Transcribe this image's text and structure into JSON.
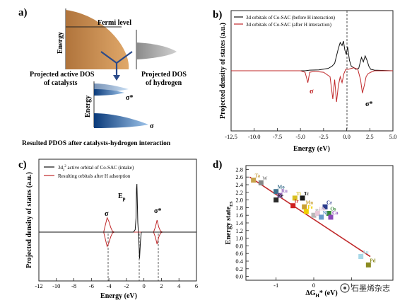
{
  "panels": {
    "a": {
      "label": "a)",
      "fermi": "Fermi level",
      "energy": "Energy",
      "cat_dos": "Projected active DOS of catalysts",
      "cat_dos_l1": "Projected active DOS",
      "cat_dos_l2": "of catalysts",
      "h_dos_l1": "Projected DOS",
      "h_dos_l2": "of hydrogen",
      "sigma_star": "σ*",
      "sigma": "σ",
      "result": "Resulted PDOS after catalysts-hydrogen interaction"
    },
    "b": {
      "label": "b)",
      "legend": [
        "3d orbitals of Co-SAC (before H interaction)",
        "3d orbitals of Co-SAC (after H interaction)"
      ],
      "sigma": "σ",
      "sigma_star": "σ*",
      "xlabel": "Energy (eV)",
      "ylabel": "Projected density of states (a.u.)",
      "xticks": [
        "-12.5",
        "-10.0",
        "-7.5",
        "-5.0",
        "-2.5",
        "0.0",
        "2.5",
        "5.0"
      ]
    },
    "c": {
      "label": "c)",
      "legend1_pre": "3d",
      "legend1_sub": "z",
      "legend1_sup": "2",
      "legend1_post": " active orbital of Co-SAC (intake)",
      "legend2": "Resulting orbitals after H adsorption",
      "ep_base": "E",
      "ep_sub": "p",
      "sigma": "σ",
      "sigma_star": "σ*",
      "xlabel": "Energy (eV)",
      "ylabel": "Projected density of states (a.u.)",
      "xticks": [
        "-12",
        "-10",
        "-8",
        "-6",
        "-4",
        "-2",
        "0",
        "2",
        "4",
        "6"
      ]
    },
    "d": {
      "label": "d)",
      "xlabel_base": "ΔG",
      "xlabel_sub": "H",
      "xlabel_tail": "* (eV)",
      "ylabel_base": "Energy state",
      "ylabel_sub": "ES",
      "xticks": [
        "-1",
        "0",
        "1"
      ],
      "yticks": [
        "0.0",
        "0.2",
        "0.4",
        "0.6",
        "0.8",
        "1.0",
        "1.2",
        "1.4",
        "1.6",
        "1.8",
        "2.0",
        "2.2",
        "2.4",
        "2.6",
        "2.8"
      ]
    }
  },
  "chart_data": [
    {
      "type": "line",
      "panel": "b",
      "xlabel": "Energy (eV)",
      "ylabel": "Projected density of states (a.u.)",
      "xlim": [
        -12.5,
        5.0
      ],
      "series": [
        {
          "name": "3d orbitals of Co-SAC (before H interaction)",
          "color": "#111111",
          "x": [
            -12.5,
            -4.5,
            -4.0,
            -3.0,
            -2.0,
            -1.6,
            -1.3,
            -1.1,
            -0.9,
            -0.7,
            -0.5,
            -0.35,
            -0.2,
            -0.05,
            0.1,
            0.3,
            0.5,
            0.8,
            1.0,
            1.3,
            1.6,
            1.8,
            2.0,
            2.2,
            2.4,
            2.6,
            3.0,
            5.0
          ],
          "y": [
            0,
            0,
            0.02,
            0.03,
            0.08,
            0.15,
            0.25,
            0.5,
            0.75,
            0.95,
            0.85,
            1.0,
            0.7,
            0.55,
            0.8,
            0.35,
            0.15,
            0.1,
            0.05,
            0.08,
            0.45,
            0.3,
            0.5,
            0.35,
            0.15,
            0.05,
            0.02,
            0
          ]
        },
        {
          "name": "3d orbitals of Co-SAC (after H interaction)",
          "color": "#c0282a",
          "x": [
            -12.5,
            -5.0,
            -4.5,
            -4.2,
            -4.0,
            -3.5,
            -2.5,
            -1.8,
            -1.5,
            -1.3,
            -1.1,
            -0.9,
            -0.7,
            -0.5,
            -0.3,
            -0.1,
            0.2,
            0.5,
            0.8,
            1.2,
            1.5,
            1.7,
            1.9,
            2.1,
            2.3,
            2.6,
            3.0,
            5.0
          ],
          "y": [
            0,
            0,
            -0.05,
            -0.4,
            -0.05,
            -0.02,
            -0.05,
            -0.2,
            -0.95,
            -0.3,
            -1.05,
            -0.5,
            -0.2,
            -0.4,
            -0.1,
            0.05,
            0.05,
            0.08,
            0.1,
            0.05,
            -0.3,
            -0.75,
            -0.5,
            -0.2,
            -0.1,
            -0.05,
            0,
            0
          ]
        }
      ]
    },
    {
      "type": "line",
      "panel": "c",
      "xlabel": "Energy (eV)",
      "ylabel": "Projected density of states (a.u.)",
      "xlim": [
        -12,
        6
      ],
      "series": [
        {
          "name": "3dz2 active orbital of Co-SAC (intake)",
          "color": "#111111",
          "x": [
            -12,
            -1.2,
            -1.0,
            -0.9,
            -0.85,
            -0.8,
            -0.7,
            -0.6,
            -0.5,
            -0.4,
            -0.3,
            6
          ],
          "y": [
            0,
            0,
            0.05,
            0.3,
            0.9,
            1.0,
            0.2,
            -0.1,
            -0.55,
            -0.2,
            0,
            0
          ]
        },
        {
          "name": "Resulting orbitals after H adsorption",
          "color": "#c0282a",
          "x": [
            -12,
            -4.6,
            -4.4,
            -4.2,
            -4.0,
            -3.8,
            -3.6,
            -3.4,
            1.1,
            1.3,
            1.5,
            1.7,
            1.9,
            2.1,
            6
          ],
          "y": [
            0,
            0,
            0.15,
            0.3,
            0.22,
            0.1,
            0.02,
            0,
            0,
            0.1,
            0.25,
            0.1,
            0.02,
            0,
            0
          ]
        }
      ]
    },
    {
      "type": "scatter",
      "panel": "d",
      "xlabel": "ΔGH* (eV)",
      "ylabel": "Energy stateES",
      "xlim": [
        -1.8,
        2.1
      ],
      "ylim": [
        -0.1,
        2.9
      ],
      "points": [
        {
          "label": "Ta",
          "x": -1.6,
          "y": 2.52,
          "color": "#c8a24a"
        },
        {
          "label": "W",
          "x": -1.4,
          "y": 2.45,
          "color": "#888888"
        },
        {
          "label": "Mo",
          "x": -1.0,
          "y": 2.22,
          "color": "#3c6f8c"
        },
        {
          "label": "Ru",
          "x": -0.9,
          "y": 2.12,
          "color": "#9a6cc0"
        },
        {
          "label": "Re",
          "x": -1.0,
          "y": 2.0,
          "color": "#2a2a2a"
        },
        {
          "label": "Ti",
          "x": -0.5,
          "y": 2.05,
          "color": "#d8c020"
        },
        {
          "label": "Tc",
          "x": -0.3,
          "y": 2.05,
          "color": "#1a1a1a"
        },
        {
          "label": "Ir",
          "x": -0.55,
          "y": 1.85,
          "color": "#d02020"
        },
        {
          "label": "Mn",
          "x": -0.25,
          "y": 1.82,
          "color": "#caa030"
        },
        {
          "label": "Cr",
          "x": 0.3,
          "y": 1.82,
          "color": "#2a3a8c"
        },
        {
          "label": "Os",
          "x": 0.4,
          "y": 1.65,
          "color": "#3a8a3a"
        },
        {
          "label": "Co",
          "x": 0.45,
          "y": 1.55,
          "color": "#8a48b8"
        },
        {
          "label": "Pt",
          "x": 0.0,
          "y": 1.6,
          "color": "#b8b8b8"
        },
        {
          "label": "Rh",
          "x": 0.1,
          "y": 1.65,
          "color": "#e8c8d8"
        },
        {
          "label": "Ni",
          "x": 0.2,
          "y": 1.55,
          "color": "#6a9acc"
        },
        {
          "label": "Fe",
          "x": -0.2,
          "y": 1.7,
          "color": "#f0d000"
        },
        {
          "label": "Au",
          "x": 1.25,
          "y": 0.52,
          "color": "#a8d8e8"
        },
        {
          "label": "Pd",
          "x": 1.45,
          "y": 0.3,
          "color": "#8a8a20"
        }
      ],
      "fit": {
        "x": [
          -1.7,
          1.5
        ],
        "y": [
          2.6,
          0.52
        ],
        "color": "#c0282a"
      }
    }
  ],
  "watermark": "石墨烯杂志",
  "colors": {
    "red": "#c0282a",
    "dark": "#111111"
  }
}
